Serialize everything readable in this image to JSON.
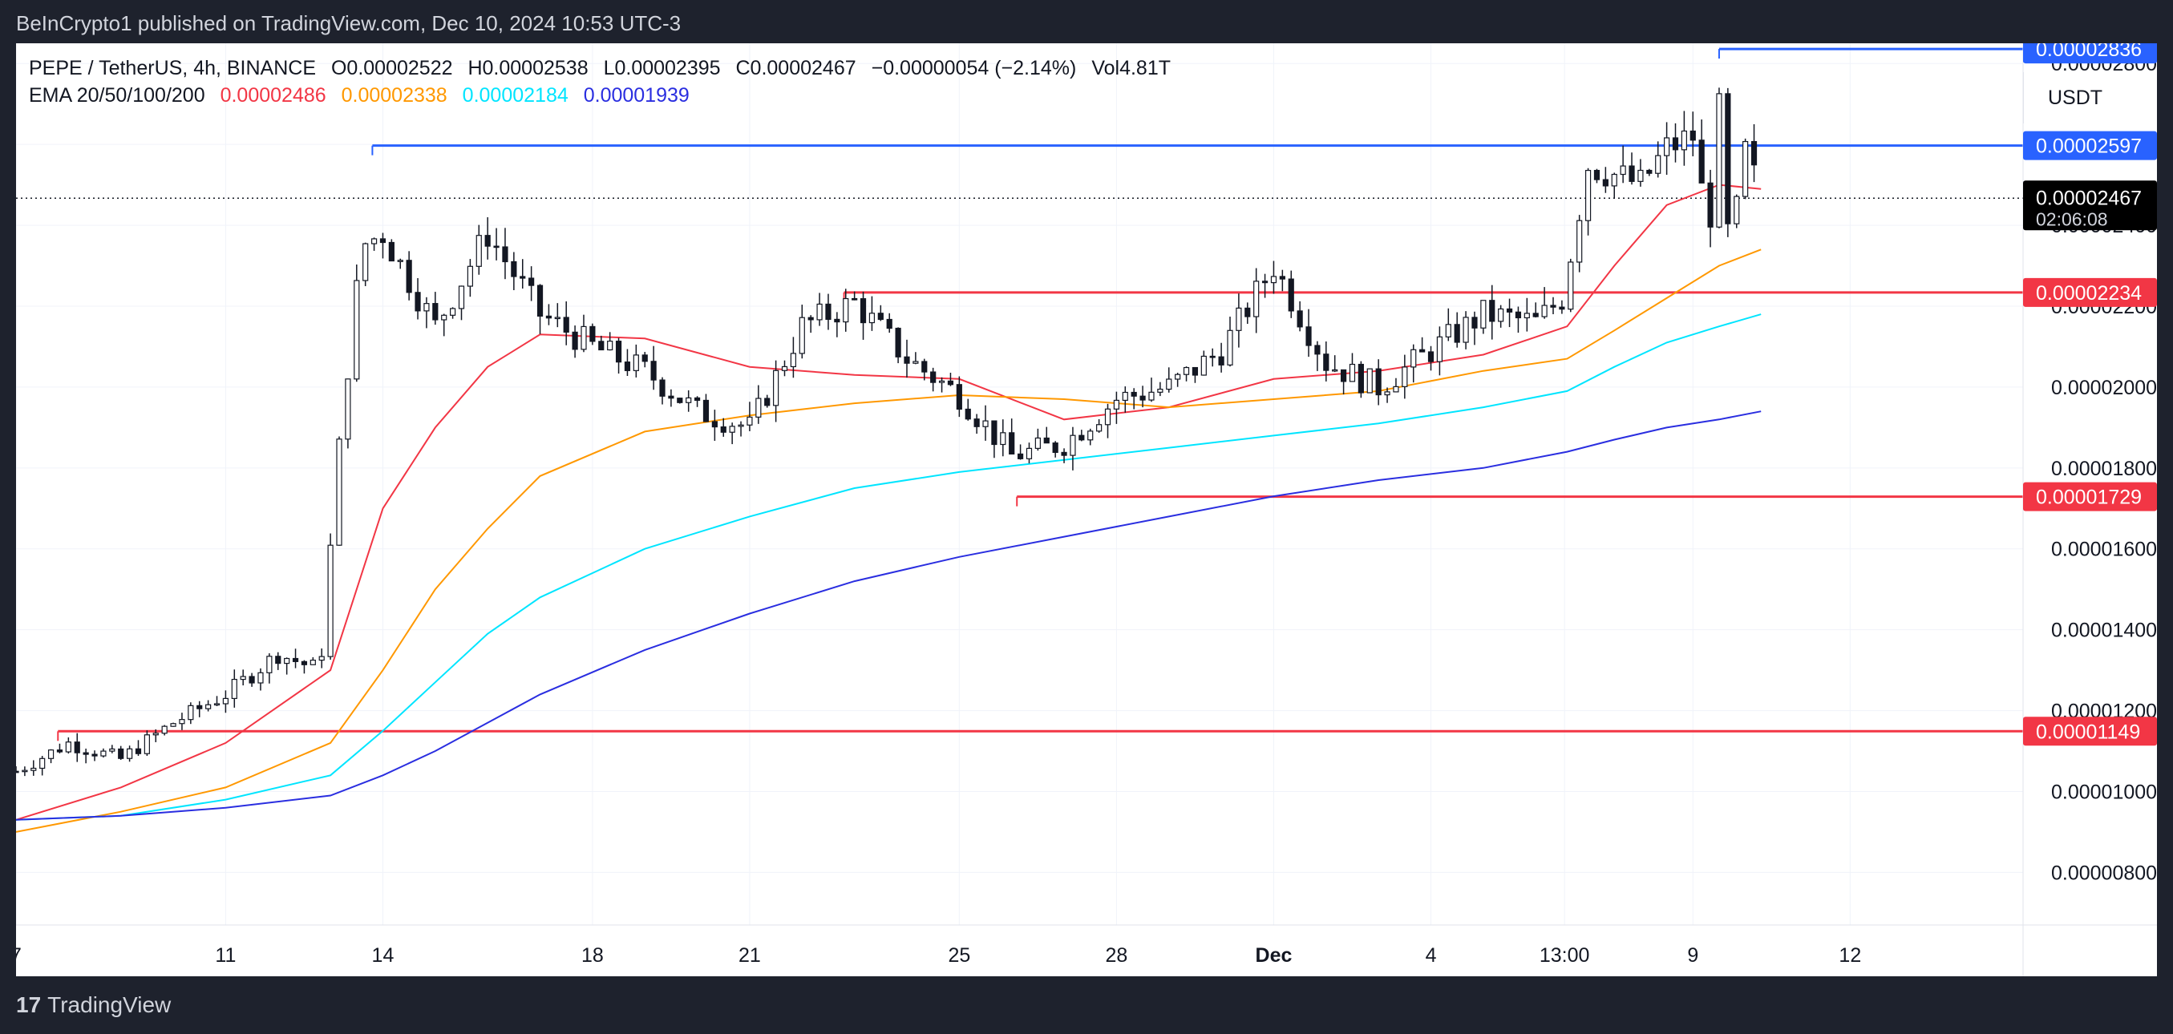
{
  "header": {
    "published": "BeInCrypto1 published on TradingView.com, Dec 10, 2024 10:53 UTC-3"
  },
  "legend": {
    "symbol": "PEPE / TetherUS, 4h, BINANCE",
    "open": "O0.00002522",
    "high": "H0.00002538",
    "low": "L0.00002395",
    "close": "C0.00002467",
    "change": "−0.00000054 (−2.14%)",
    "volume": "Vol4.81T",
    "ema_label": "EMA 20/50/100/200",
    "ema_values": [
      "0.00002486",
      "0.00002338",
      "0.00002184",
      "0.00001939"
    ],
    "ema_colors": [
      "#f23645",
      "#ff9800",
      "#00e5ff",
      "#2a2ee0"
    ]
  },
  "currency": "USDT",
  "footer": {
    "logo_mark": "17",
    "logo_text": "TradingView"
  },
  "chart_data": {
    "type": "candlestick",
    "title": "PEPE / TetherUS, 4h, BINANCE",
    "y_unit": "USDT",
    "ylim": [
      6.7e-06,
      2.85e-05
    ],
    "y_ticks": [
      "0.00002800",
      "0.00002600",
      "0.00002400",
      "0.00002200",
      "0.00002000",
      "0.00001800",
      "0.00001600",
      "0.00001400",
      "0.00001200",
      "0.00001000",
      "0.00000800"
    ],
    "x_ticks": [
      "7",
      "11",
      "14",
      "18",
      "21",
      "25",
      "28",
      "Dec",
      "4",
      "13:00",
      "9",
      "12"
    ],
    "x_tick_days": [
      7,
      11,
      14,
      18,
      21,
      25,
      28,
      31,
      34,
      36.55,
      39,
      42
    ],
    "xlim": [
      7,
      45.3
    ],
    "last_price": {
      "value": 2.467e-05,
      "label": "0.00002467",
      "countdown": "02:06:08"
    },
    "levels": [
      {
        "value": 2.836e-05,
        "label": "0.00002836",
        "color": "#2962ff",
        "from_day": 39.5
      },
      {
        "value": 2.597e-05,
        "label": "0.00002597",
        "color": "#2962ff",
        "from_day": 13.8
      },
      {
        "value": 2.234e-05,
        "label": "0.00002234",
        "color": "#f23645",
        "from_day": 22.8
      },
      {
        "value": 1.729e-05,
        "label": "0.00001729",
        "color": "#f23645",
        "from_day": 26.1
      },
      {
        "value": 1.149e-05,
        "label": "0.00001149",
        "color": "#f23645",
        "from_day": 7.8
      }
    ],
    "price_path": [
      [
        7.0,
        1.05e-05
      ],
      [
        8.0,
        1.12e-05
      ],
      [
        9.0,
        1.08e-05
      ],
      [
        10.0,
        1.17e-05
      ],
      [
        11.0,
        1.24e-05
      ],
      [
        12.0,
        1.34e-05
      ],
      [
        12.8,
        1.3e-05
      ],
      [
        13.2,
        1.9e-05
      ],
      [
        13.6,
        2.35e-05
      ],
      [
        14.0,
        2.38e-05
      ],
      [
        15.0,
        2.15e-05
      ],
      [
        16.0,
        2.38e-05
      ],
      [
        17.0,
        2.18e-05
      ],
      [
        18.0,
        2.1e-05
      ],
      [
        19.0,
        2.04e-05
      ],
      [
        20.0,
        1.94e-05
      ],
      [
        21.0,
        1.9e-05
      ],
      [
        22.0,
        2.15e-05
      ],
      [
        23.0,
        2.21e-05
      ],
      [
        24.0,
        2.07e-05
      ],
      [
        25.0,
        1.98e-05
      ],
      [
        26.0,
        1.83e-05
      ],
      [
        27.0,
        1.86e-05
      ],
      [
        28.0,
        1.97e-05
      ],
      [
        29.0,
        2e-05
      ],
      [
        30.0,
        2.09e-05
      ],
      [
        31.0,
        2.3e-05
      ],
      [
        32.0,
        2.06e-05
      ],
      [
        33.0,
        2e-05
      ],
      [
        34.0,
        2.09e-05
      ],
      [
        35.0,
        2.18e-05
      ],
      [
        36.0,
        2.16e-05
      ],
      [
        36.5,
        2.22e-05
      ],
      [
        37.0,
        2.55e-05
      ],
      [
        38.0,
        2.5e-05
      ],
      [
        38.5,
        2.59e-05
      ],
      [
        39.0,
        2.62e-05
      ],
      [
        39.3,
        2.38e-05
      ],
      [
        39.5,
        2.68e-05
      ],
      [
        39.7,
        2.32e-05
      ],
      [
        40.0,
        2.58e-05
      ],
      [
        40.3,
        2.47e-05
      ]
    ],
    "series": [
      {
        "name": "EMA 20",
        "color": "#f23645",
        "points": [
          [
            7.0,
            9.3e-06
          ],
          [
            9.0,
            1.01e-05
          ],
          [
            11.0,
            1.12e-05
          ],
          [
            13.0,
            1.3e-05
          ],
          [
            14.0,
            1.7e-05
          ],
          [
            15.0,
            1.9e-05
          ],
          [
            16.0,
            2.05e-05
          ],
          [
            17.0,
            2.13e-05
          ],
          [
            19.0,
            2.12e-05
          ],
          [
            21.0,
            2.05e-05
          ],
          [
            23.0,
            2.03e-05
          ],
          [
            25.0,
            2.02e-05
          ],
          [
            27.0,
            1.92e-05
          ],
          [
            29.0,
            1.95e-05
          ],
          [
            31.0,
            2.02e-05
          ],
          [
            33.0,
            2.04e-05
          ],
          [
            35.0,
            2.08e-05
          ],
          [
            36.6,
            2.15e-05
          ],
          [
            37.5,
            2.3e-05
          ],
          [
            38.5,
            2.45e-05
          ],
          [
            39.5,
            2.5e-05
          ],
          [
            40.3,
            2.49e-05
          ]
        ]
      },
      {
        "name": "EMA 50",
        "color": "#ff9800",
        "points": [
          [
            7.0,
            9e-06
          ],
          [
            9.0,
            9.5e-06
          ],
          [
            11.0,
            1.01e-05
          ],
          [
            13.0,
            1.12e-05
          ],
          [
            14.0,
            1.3e-05
          ],
          [
            15.0,
            1.5e-05
          ],
          [
            16.0,
            1.65e-05
          ],
          [
            17.0,
            1.78e-05
          ],
          [
            19.0,
            1.89e-05
          ],
          [
            21.0,
            1.93e-05
          ],
          [
            23.0,
            1.96e-05
          ],
          [
            25.0,
            1.98e-05
          ],
          [
            27.0,
            1.97e-05
          ],
          [
            29.0,
            1.95e-05
          ],
          [
            31.0,
            1.97e-05
          ],
          [
            33.0,
            1.99e-05
          ],
          [
            35.0,
            2.04e-05
          ],
          [
            36.6,
            2.07e-05
          ],
          [
            37.5,
            2.14e-05
          ],
          [
            38.5,
            2.22e-05
          ],
          [
            39.5,
            2.3e-05
          ],
          [
            40.3,
            2.34e-05
          ]
        ]
      },
      {
        "name": "EMA 100",
        "color": "#00e5ff",
        "points": [
          [
            7.0,
            9.3e-06
          ],
          [
            9.0,
            9.4e-06
          ],
          [
            11.0,
            9.8e-06
          ],
          [
            13.0,
            1.04e-05
          ],
          [
            14.0,
            1.15e-05
          ],
          [
            15.0,
            1.27e-05
          ],
          [
            16.0,
            1.39e-05
          ],
          [
            17.0,
            1.48e-05
          ],
          [
            19.0,
            1.6e-05
          ],
          [
            21.0,
            1.68e-05
          ],
          [
            23.0,
            1.75e-05
          ],
          [
            25.0,
            1.79e-05
          ],
          [
            27.0,
            1.82e-05
          ],
          [
            29.0,
            1.85e-05
          ],
          [
            31.0,
            1.88e-05
          ],
          [
            33.0,
            1.91e-05
          ],
          [
            35.0,
            1.95e-05
          ],
          [
            36.6,
            1.99e-05
          ],
          [
            37.5,
            2.05e-05
          ],
          [
            38.5,
            2.11e-05
          ],
          [
            39.5,
            2.15e-05
          ],
          [
            40.3,
            2.18e-05
          ]
        ]
      },
      {
        "name": "EMA 200",
        "color": "#2a2ee0",
        "points": [
          [
            7.0,
            9.3e-06
          ],
          [
            9.0,
            9.4e-06
          ],
          [
            11.0,
            9.6e-06
          ],
          [
            13.0,
            9.9e-06
          ],
          [
            14.0,
            1.04e-05
          ],
          [
            15.0,
            1.1e-05
          ],
          [
            17.0,
            1.24e-05
          ],
          [
            19.0,
            1.35e-05
          ],
          [
            21.0,
            1.44e-05
          ],
          [
            23.0,
            1.52e-05
          ],
          [
            25.0,
            1.58e-05
          ],
          [
            27.0,
            1.63e-05
          ],
          [
            29.0,
            1.68e-05
          ],
          [
            31.0,
            1.73e-05
          ],
          [
            33.0,
            1.77e-05
          ],
          [
            35.0,
            1.8e-05
          ],
          [
            36.6,
            1.84e-05
          ],
          [
            37.5,
            1.87e-05
          ],
          [
            38.5,
            1.9e-05
          ],
          [
            39.5,
            1.92e-05
          ],
          [
            40.3,
            1.94e-05
          ]
        ]
      }
    ]
  }
}
